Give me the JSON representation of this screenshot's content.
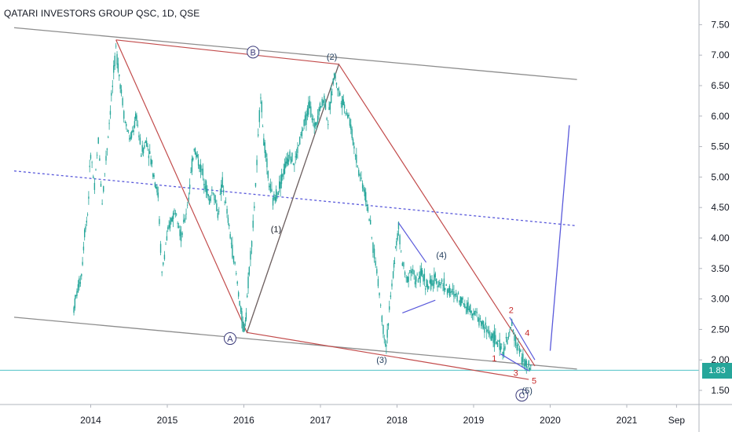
{
  "header": {
    "title": "QATARI INVESTORS GROUP QSC, 1D, QSE"
  },
  "last_price": "1.83",
  "chart_data": {
    "type": "candlestick",
    "symbol": "QATARI INVESTORS GROUP QSC",
    "interval": "1D",
    "exchange": "QSE",
    "ylim": [
      1.2,
      7.75
    ],
    "y_ticks": [
      "1.50",
      "2.00",
      "2.50",
      "3.00",
      "3.50",
      "4.00",
      "4.50",
      "5.00",
      "5.50",
      "6.00",
      "6.50",
      "7.00",
      "7.50"
    ],
    "x_ticks": [
      "2014",
      "2015",
      "2016",
      "2017",
      "2018",
      "2019",
      "2020",
      "2021",
      "Sep"
    ],
    "price_path": [
      [
        2013.78,
        2.85
      ],
      [
        2013.82,
        3.1
      ],
      [
        2013.88,
        3.4
      ],
      [
        2013.92,
        4.1
      ],
      [
        2013.96,
        4.4
      ],
      [
        2014.0,
        5.4
      ],
      [
        2014.05,
        4.8
      ],
      [
        2014.1,
        5.6
      ],
      [
        2014.15,
        4.6
      ],
      [
        2014.2,
        5.3
      ],
      [
        2014.27,
        6.3
      ],
      [
        2014.33,
        7.1
      ],
      [
        2014.4,
        6.4
      ],
      [
        2014.45,
        5.9
      ],
      [
        2014.52,
        5.6
      ],
      [
        2014.6,
        6.0
      ],
      [
        2014.66,
        5.4
      ],
      [
        2014.73,
        5.6
      ],
      [
        2014.8,
        5.2
      ],
      [
        2014.88,
        4.7
      ],
      [
        2014.93,
        3.4
      ],
      [
        2014.98,
        3.9
      ],
      [
        2015.05,
        4.3
      ],
      [
        2015.12,
        4.5
      ],
      [
        2015.18,
        4.0
      ],
      [
        2015.23,
        4.3
      ],
      [
        2015.28,
        4.7
      ],
      [
        2015.35,
        5.5
      ],
      [
        2015.42,
        5.2
      ],
      [
        2015.48,
        5.0
      ],
      [
        2015.55,
        4.6
      ],
      [
        2015.6,
        4.8
      ],
      [
        2015.66,
        4.4
      ],
      [
        2015.72,
        4.9
      ],
      [
        2015.78,
        4.4
      ],
      [
        2015.85,
        3.8
      ],
      [
        2015.9,
        3.4
      ],
      [
        2015.96,
        2.8
      ],
      [
        2016.0,
        2.45
      ],
      [
        2016.03,
        2.8
      ],
      [
        2016.07,
        3.5
      ],
      [
        2016.12,
        4.2
      ],
      [
        2016.17,
        5.2
      ],
      [
        2016.22,
        6.4
      ],
      [
        2016.26,
        5.6
      ],
      [
        2016.33,
        4.9
      ],
      [
        2016.38,
        4.6
      ],
      [
        2016.45,
        4.8
      ],
      [
        2016.52,
        5.1
      ],
      [
        2016.6,
        5.4
      ],
      [
        2016.66,
        5.2
      ],
      [
        2016.73,
        5.6
      ],
      [
        2016.8,
        5.9
      ],
      [
        2016.86,
        6.2
      ],
      [
        2016.92,
        5.8
      ],
      [
        2016.98,
        6.1
      ],
      [
        2017.05,
        6.3
      ],
      [
        2017.1,
        5.9
      ],
      [
        2017.18,
        6.7
      ],
      [
        2017.24,
        6.4
      ],
      [
        2017.3,
        6.2
      ],
      [
        2017.37,
        6.0
      ],
      [
        2017.44,
        5.5
      ],
      [
        2017.5,
        5.1
      ],
      [
        2017.55,
        4.9
      ],
      [
        2017.62,
        4.5
      ],
      [
        2017.67,
        4.0
      ],
      [
        2017.72,
        3.6
      ],
      [
        2017.77,
        3.1
      ],
      [
        2017.82,
        2.5
      ],
      [
        2017.86,
        2.25
      ],
      [
        2017.9,
        2.8
      ],
      [
        2017.95,
        3.4
      ],
      [
        2017.98,
        3.8
      ],
      [
        2018.02,
        4.15
      ],
      [
        2018.07,
        3.6
      ],
      [
        2018.12,
        3.3
      ],
      [
        2018.18,
        3.5
      ],
      [
        2018.25,
        3.3
      ],
      [
        2018.33,
        3.4
      ],
      [
        2018.4,
        3.2
      ],
      [
        2018.5,
        3.3
      ],
      [
        2018.6,
        3.25
      ],
      [
        2018.7,
        3.1
      ],
      [
        2018.8,
        3.05
      ],
      [
        2018.9,
        2.9
      ],
      [
        2019.0,
        2.8
      ],
      [
        2019.1,
        2.6
      ],
      [
        2019.2,
        2.45
      ],
      [
        2019.3,
        2.3
      ],
      [
        2019.38,
        2.15
      ],
      [
        2019.44,
        2.3
      ],
      [
        2019.5,
        2.55
      ],
      [
        2019.55,
        2.3
      ],
      [
        2019.6,
        2.15
      ],
      [
        2019.66,
        1.95
      ],
      [
        2019.72,
        1.85
      ],
      [
        2019.76,
        1.83
      ]
    ],
    "price_lines": [
      {
        "y": 1.83,
        "color": "#4fc3c7",
        "style": "solid"
      }
    ],
    "trend_lines": [
      {
        "from": [
          2013.0,
          7.45
        ],
        "to": [
          2020.35,
          6.6
        ],
        "color": "#8d8d8d"
      },
      {
        "from": [
          2013.0,
          2.7
        ],
        "to": [
          2020.35,
          1.85
        ],
        "color": "#8d8d8d"
      },
      {
        "from": [
          2013.0,
          5.1
        ],
        "to": [
          2020.35,
          4.2
        ],
        "color": "#5a5adb",
        "style": "dashed"
      },
      {
        "from": [
          2020.0,
          2.15
        ],
        "to": [
          2020.25,
          5.85
        ],
        "color": "#5a5adb"
      }
    ],
    "pattern_lines": [
      {
        "points": [
          [
            2014.33,
            7.25
          ],
          [
            2016.04,
            2.45
          ],
          [
            2017.24,
            6.85
          ],
          [
            2019.8,
            1.9
          ]
        ],
        "color": "#c24b4b"
      },
      {
        "points": [
          [
            2014.33,
            7.25
          ],
          [
            2017.24,
            6.85
          ]
        ],
        "color": "#c24b4b"
      },
      {
        "points": [
          [
            2016.04,
            2.45
          ],
          [
            2019.72,
            1.68
          ]
        ],
        "color": "#c24b4b"
      },
      {
        "points": [
          [
            2016.04,
            2.45
          ],
          [
            2017.24,
            6.85
          ]
        ],
        "color": "#666666"
      }
    ],
    "channel_lines": [
      {
        "from": [
          2018.02,
          4.25
        ],
        "to": [
          2018.38,
          3.6
        ],
        "color": "#5a5adb"
      },
      {
        "from": [
          2018.07,
          2.77
        ],
        "to": [
          2018.5,
          2.98
        ],
        "color": "#5a5adb"
      },
      {
        "from": [
          2019.47,
          2.7
        ],
        "to": [
          2019.8,
          2.0
        ],
        "color": "#5a5adb"
      },
      {
        "from": [
          2019.35,
          2.1
        ],
        "to": [
          2019.72,
          1.82
        ],
        "color": "#5a5adb"
      }
    ],
    "annotations": [
      {
        "text": "B",
        "x": 2016.12,
        "y": 7.05,
        "circled": true,
        "color": "#3a3a7a"
      },
      {
        "text": "(2)",
        "x": 2017.15,
        "y": 6.98,
        "circled": false,
        "color": "#1f3a5a"
      },
      {
        "text": "A",
        "x": 2015.82,
        "y": 2.35,
        "circled": true,
        "color": "#3a3a7a"
      },
      {
        "text": "(1)",
        "x": 2016.42,
        "y": 4.15,
        "circled": false,
        "color": "#131722"
      },
      {
        "text": "(3)",
        "x": 2017.8,
        "y": 2.0,
        "circled": false,
        "color": "#1f3a5a"
      },
      {
        "text": "(4)",
        "x": 2018.58,
        "y": 3.72,
        "circled": false,
        "color": "#1f3a5a"
      },
      {
        "text": "2",
        "x": 2019.49,
        "y": 2.82,
        "circled": false,
        "color": "#c62828"
      },
      {
        "text": "4",
        "x": 2019.7,
        "y": 2.45,
        "circled": false,
        "color": "#c62828"
      },
      {
        "text": "1",
        "x": 2019.27,
        "y": 2.03,
        "circled": false,
        "color": "#c62828"
      },
      {
        "text": "3",
        "x": 2019.55,
        "y": 1.79,
        "circled": false,
        "color": "#c62828"
      },
      {
        "text": "5",
        "x": 2019.79,
        "y": 1.66,
        "circled": false,
        "color": "#c62828"
      },
      {
        "text": "C",
        "x": 2019.63,
        "y": 1.42,
        "circled": true,
        "color": "#3a3a7a"
      },
      {
        "text": "(5)",
        "x": 2019.7,
        "y": 1.5,
        "circled": false,
        "color": "#1f3a5a"
      }
    ],
    "colors": {
      "up": "#26a69a",
      "down": "#26a69a",
      "axis_text": "#131722",
      "grid": "#e6e6e6",
      "last_price_bg": "#26a69a"
    }
  }
}
